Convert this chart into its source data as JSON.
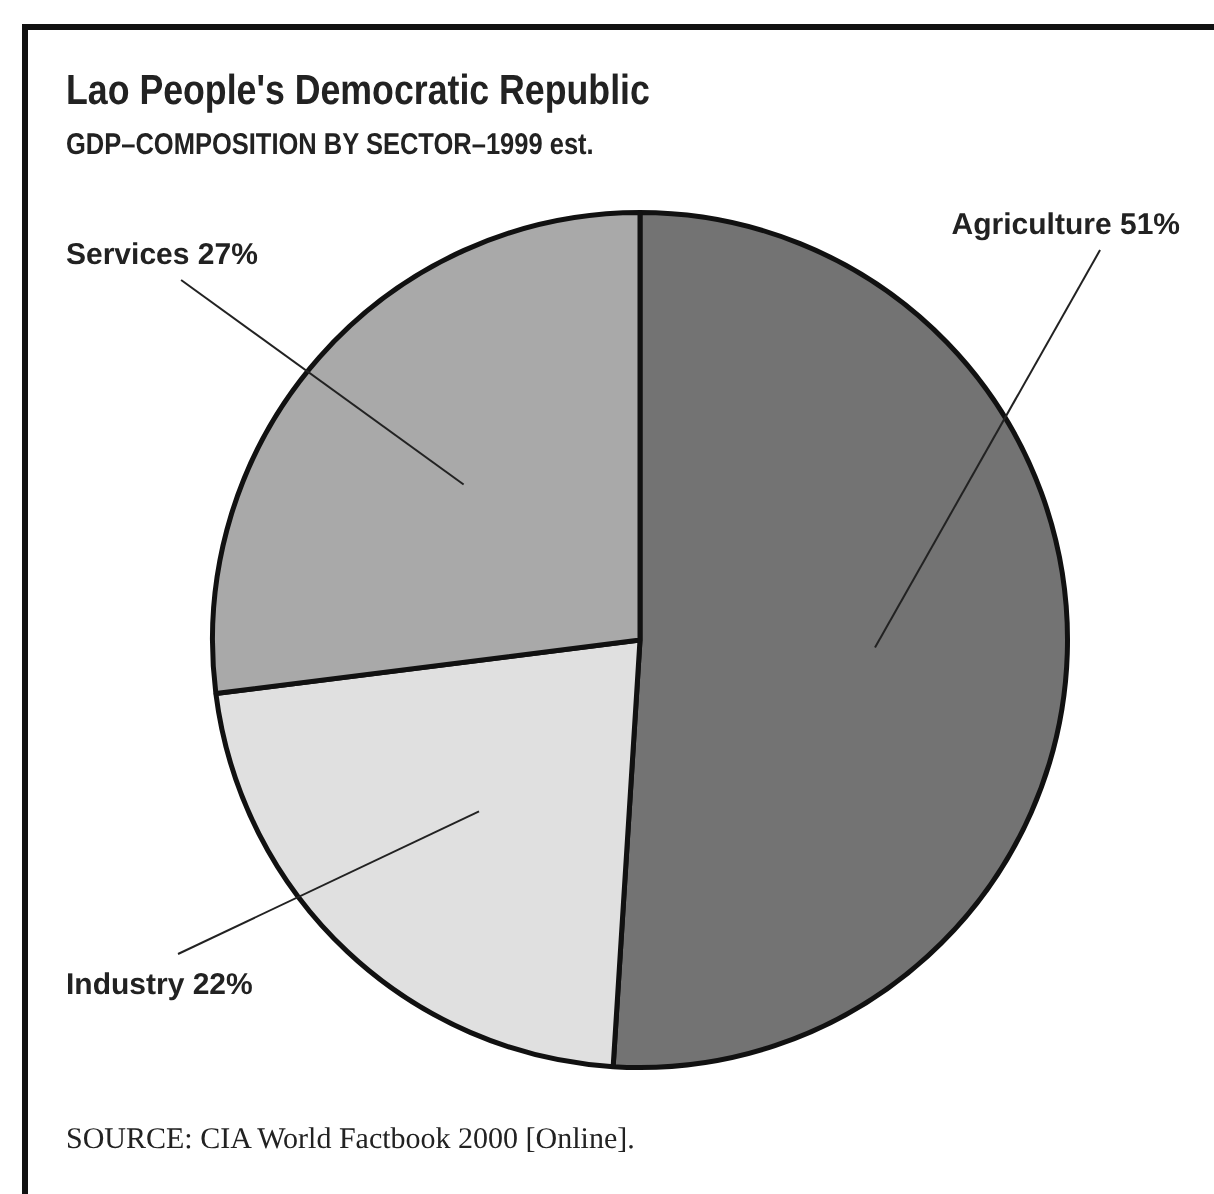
{
  "chart_data": {
    "type": "pie",
    "title": "Lao People's Democratic Republic",
    "subtitle": "GDP–COMPOSITION BY SECTOR–1999 est.",
    "categories": [
      "Agriculture",
      "Industry",
      "Services"
    ],
    "values": [
      51,
      22,
      27
    ],
    "value_labels": [
      "51%",
      "22%",
      "27%"
    ],
    "colors": [
      "#737373",
      "#e0e0e0",
      "#a9a9a9"
    ],
    "legend": false,
    "annotations": [
      "SOURCE: CIA World Factbook 2000 [Online]."
    ]
  }
}
